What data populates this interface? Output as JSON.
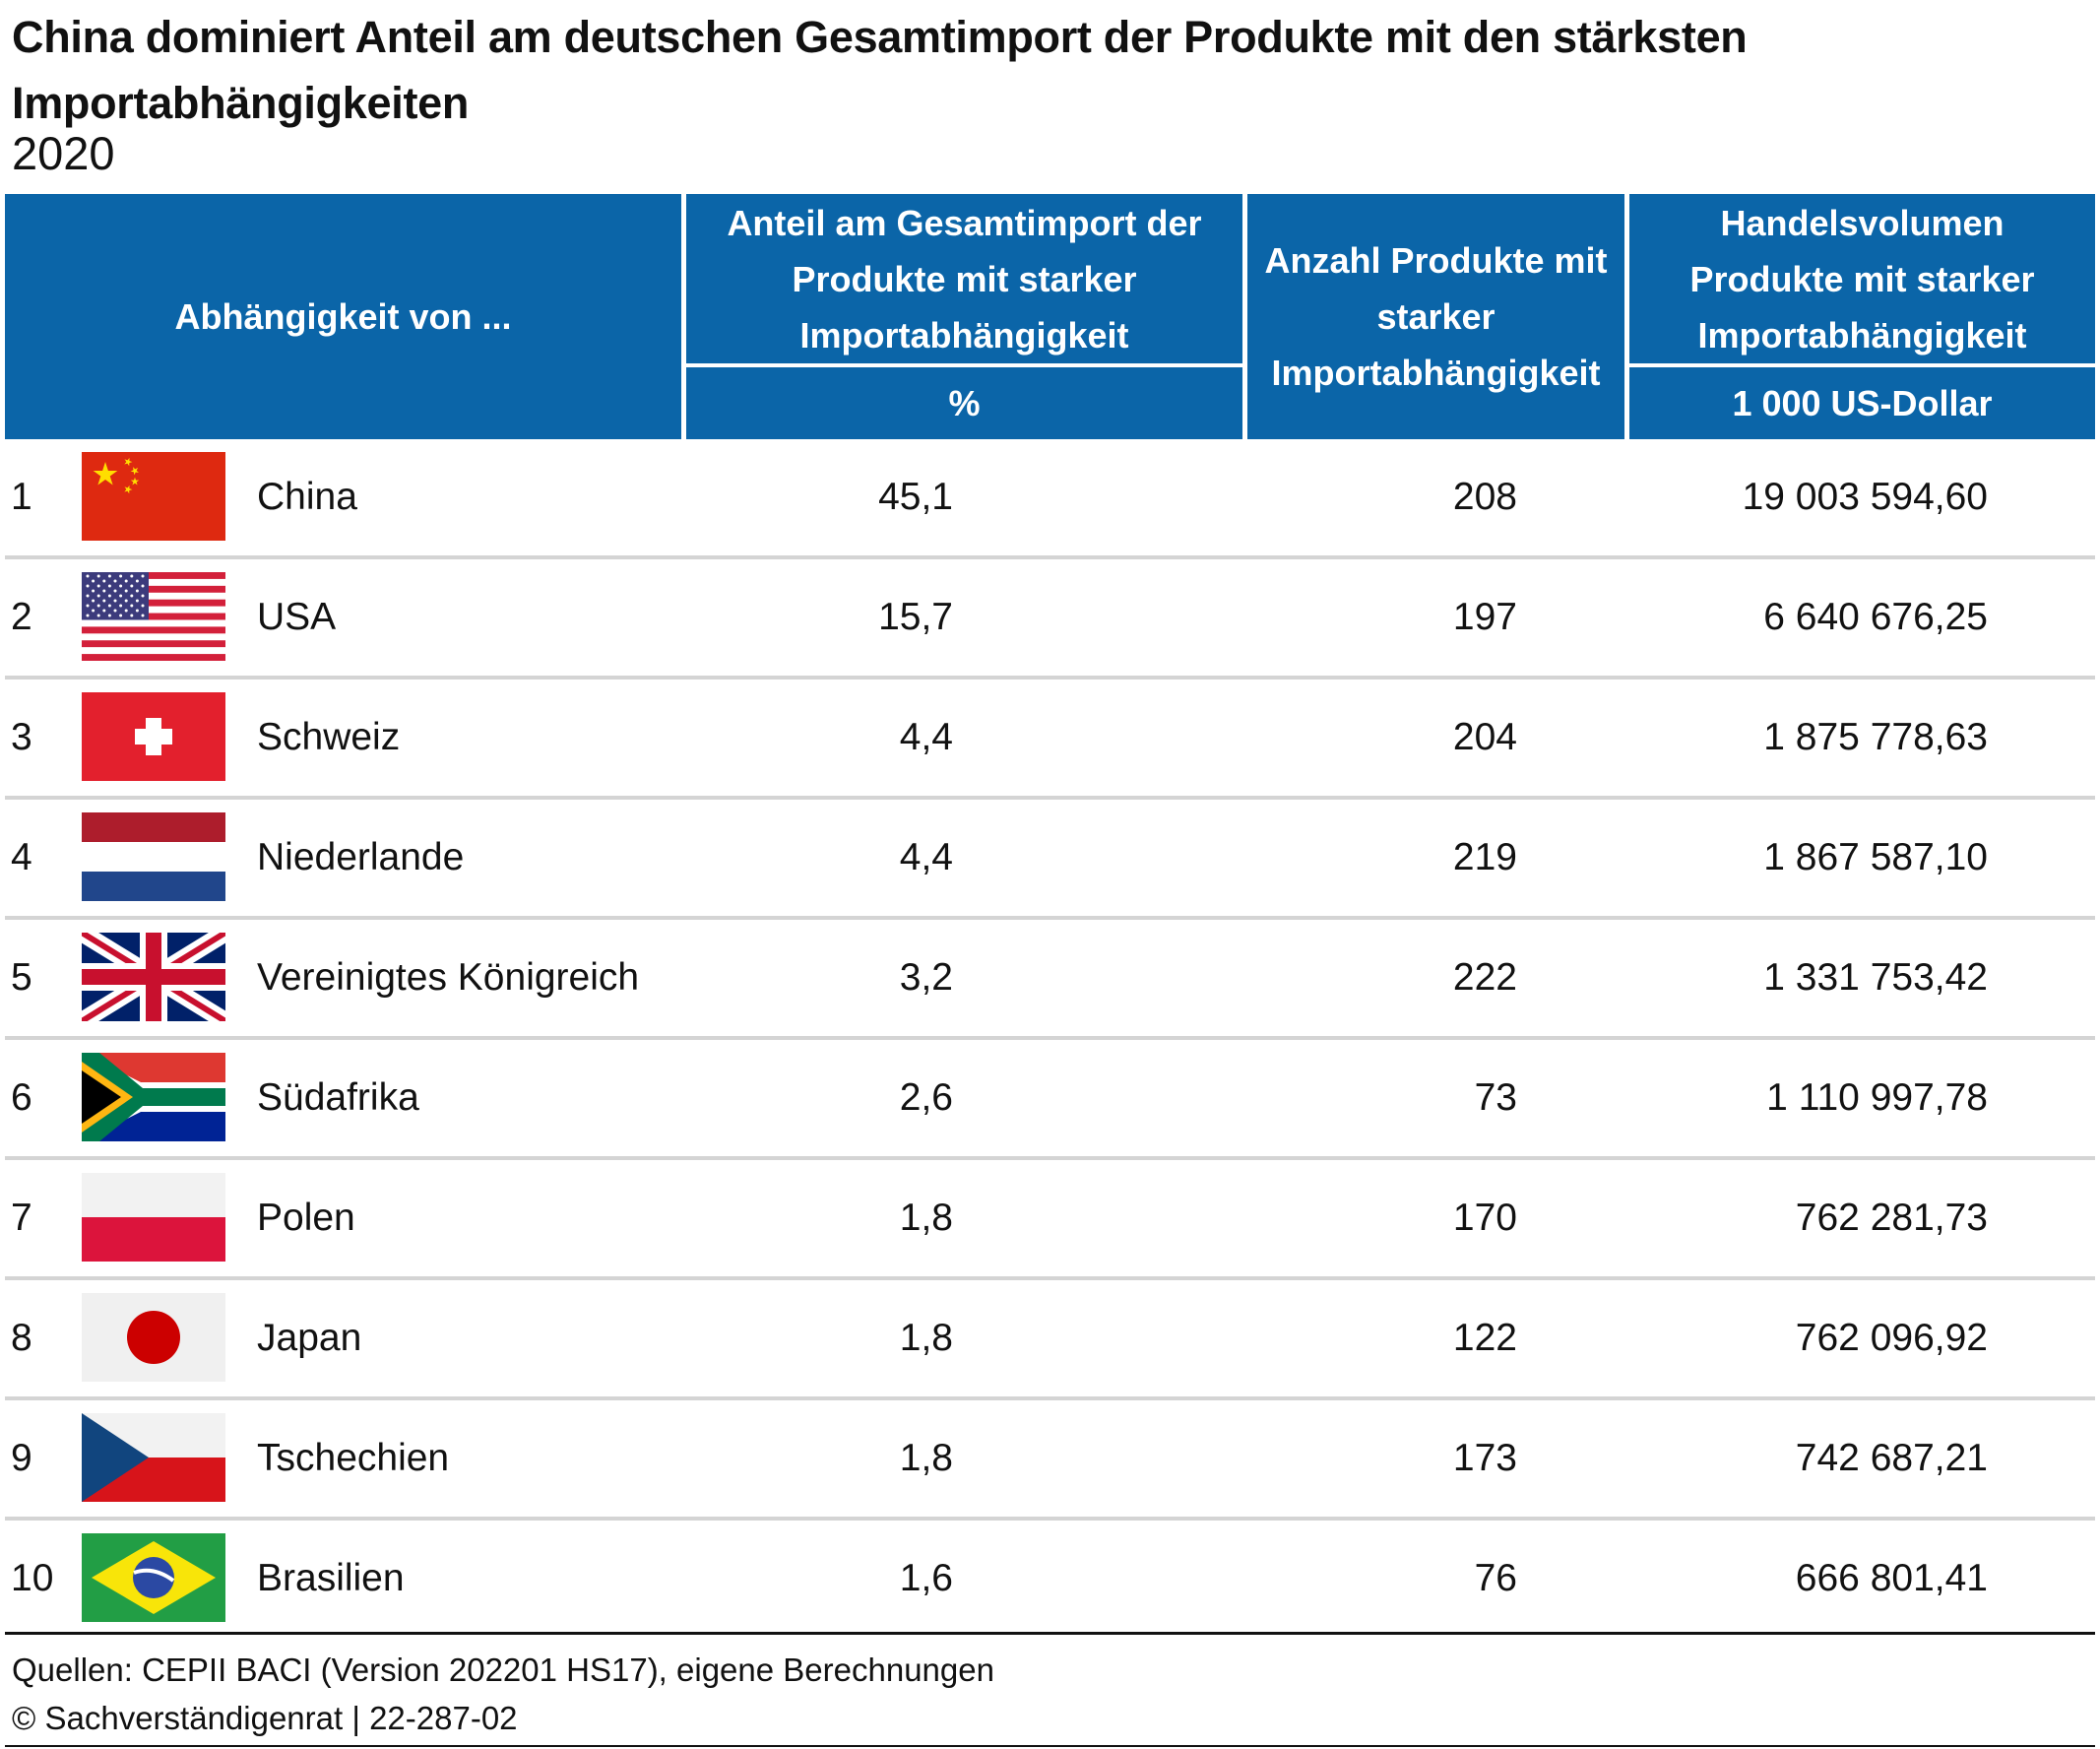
{
  "title": "China dominiert Anteil am deutschen Gesamtimport der Produkte mit den stärksten Importabhängigkeiten",
  "subtitle": "2020",
  "colors": {
    "header_bg": "#0b65a8",
    "header_text": "#ffffff",
    "row_separator": "#d4d4d4"
  },
  "headers": {
    "dependency": "Abhängigkeit von ...",
    "share": "Anteil am Gesamtimport der Produkte mit starker Importabhängigkeit",
    "share_unit": "%",
    "count": "Anzahl Produkte mit starker Importabhängigkeit",
    "volume": "Handelsvolumen Produkte mit starker Importabhängigkeit",
    "volume_unit": "1 000 US-Dollar"
  },
  "rows": [
    {
      "rank": "1",
      "country": "China",
      "flag_icon": "china-flag-icon",
      "share": "45,1",
      "count": "208",
      "volume": "19 003 594,60"
    },
    {
      "rank": "2",
      "country": "USA",
      "flag_icon": "usa-flag-icon",
      "share": "15,7",
      "count": "197",
      "volume": "6 640 676,25"
    },
    {
      "rank": "3",
      "country": "Schweiz",
      "flag_icon": "switzerland-flag-icon",
      "share": "4,4",
      "count": "204",
      "volume": "1 875 778,63"
    },
    {
      "rank": "4",
      "country": "Niederlande",
      "flag_icon": "netherlands-flag-icon",
      "share": "4,4",
      "count": "219",
      "volume": "1 867 587,10"
    },
    {
      "rank": "5",
      "country": "Vereinigtes Königreich",
      "flag_icon": "uk-flag-icon",
      "share": "3,2",
      "count": "222",
      "volume": "1 331 753,42"
    },
    {
      "rank": "6",
      "country": "Südafrika",
      "flag_icon": "south-africa-flag-icon",
      "share": "2,6",
      "count": "73",
      "volume": "1 110 997,78"
    },
    {
      "rank": "7",
      "country": "Polen",
      "flag_icon": "poland-flag-icon",
      "share": "1,8",
      "count": "170",
      "volume": "762 281,73"
    },
    {
      "rank": "8",
      "country": "Japan",
      "flag_icon": "japan-flag-icon",
      "share": "1,8",
      "count": "122",
      "volume": "762 096,92"
    },
    {
      "rank": "9",
      "country": "Tschechien",
      "flag_icon": "czechia-flag-icon",
      "share": "1,8",
      "count": "173",
      "volume": "742 687,21"
    },
    {
      "rank": "10",
      "country": "Brasilien",
      "flag_icon": "brazil-flag-icon",
      "share": "1,6",
      "count": "76",
      "volume": "666 801,41"
    }
  ],
  "footer": {
    "sources": "Quellen: CEPII BACI (Version 202201 HS17), eigene Berechnungen",
    "copyright": "© Sachverständigenrat | 22-287-02"
  },
  "chart_data": {
    "type": "table",
    "title": "China dominiert Anteil am deutschen Gesamtimport der Produkte mit den stärksten Importabhängigkeiten",
    "subtitle": "2020",
    "columns": [
      "Abhängigkeit von ...",
      "Anteil am Gesamtimport der Produkte mit starker Importabhängigkeit (%)",
      "Anzahl Produkte mit starker Importabhängigkeit",
      "Handelsvolumen Produkte mit starker Importabhängigkeit (1 000 US-Dollar)"
    ],
    "categories": [
      "China",
      "USA",
      "Schweiz",
      "Niederlande",
      "Vereinigtes Königreich",
      "Südafrika",
      "Polen",
      "Japan",
      "Tschechien",
      "Brasilien"
    ],
    "series": [
      {
        "name": "Anteil am Gesamtimport der Produkte mit starker Importabhängigkeit (%)",
        "values": [
          45.1,
          15.7,
          4.4,
          4.4,
          3.2,
          2.6,
          1.8,
          1.8,
          1.8,
          1.6
        ]
      },
      {
        "name": "Anzahl Produkte mit starker Importabhängigkeit",
        "values": [
          208,
          197,
          204,
          219,
          222,
          73,
          170,
          122,
          173,
          76
        ]
      },
      {
        "name": "Handelsvolumen Produkte mit starker Importabhängigkeit (1 000 US-Dollar)",
        "values": [
          19003594.6,
          6640676.25,
          1875778.63,
          1867587.1,
          1331753.42,
          1110997.78,
          762281.73,
          762096.92,
          742687.21,
          666801.41
        ]
      }
    ]
  }
}
